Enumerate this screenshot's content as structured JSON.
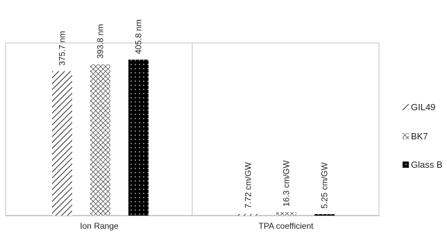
{
  "chart_data": {
    "type": "bar",
    "categories": [
      "Ion Range",
      "TPA coefficient"
    ],
    "series": [
      {
        "name": "GIL49",
        "values": [
          375.7,
          7.72
        ],
        "labels": [
          "375.7 nm",
          "7.72 cm/GW"
        ],
        "pattern": "diagonal-hatch"
      },
      {
        "name": "BK7",
        "values": [
          393.8,
          16.3
        ],
        "labels": [
          "393.8 nm",
          "16.3 cm/GW"
        ],
        "pattern": "crosshatch"
      },
      {
        "name": "Glass B",
        "values": [
          405.8,
          5.25
        ],
        "labels": [
          "405.8 nm",
          "5.25 cm/GW"
        ],
        "pattern": "black-dotted"
      }
    ],
    "ylim": [
      0,
      405.8
    ],
    "grid": false,
    "legend_position": "right",
    "title": "",
    "xlabel": "",
    "ylabel": ""
  },
  "colors": {
    "frame": "#bfbfbf",
    "ink": "#222222",
    "fill_dark": "#000000"
  }
}
